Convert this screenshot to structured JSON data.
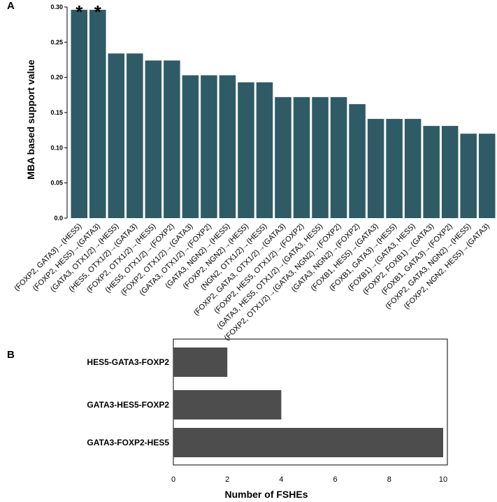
{
  "panels": {
    "a_label": "A",
    "b_label": "B"
  },
  "chart_data": [
    {
      "type": "bar",
      "orientation": "vertical",
      "panel": "A",
      "title": "",
      "xlabel": "",
      "ylabel": "MBA based support value",
      "ylim": [
        0,
        0.3
      ],
      "yticks": [
        "0.0",
        "0.05",
        "0.10",
        "0.15",
        "0.20",
        "0.25",
        "0.30"
      ],
      "bar_color": "#2f5b66",
      "categories": [
        "(FOXP2, GATA3)→(HES5)",
        "(FOXP2, HES5)→(GATA3)",
        "(GATA3, OTX1/2)→(HES5)",
        "(HES5, OTX1/2)→(GATA3)",
        "(FOXP2, OTX1/2)→(HES5)",
        "(HES5, OTX1/2)→(FOXP2)",
        "(FOXP2, OTX1/2)→(GATA3)",
        "(GATA3, OTX1/2)→(FOXP2)",
        "(GATA3, NGN2)→(HES5)",
        "(FOXP2, NGN2)→(HES5)",
        "(NGN2, OTX1/2)→(HES5)",
        "(FOXP2, GATA3, OTX1/2)→(GATA3)",
        "(FOXP2, HES5, OTX1/2)→(FOXP2)",
        "(GATA3, HES5, OTX1/2)→(GATA3, HES5)",
        "(FOXP2, OTX1/2)→(GATA3, NGN2)→(FOXP2)",
        "(GATA3, NGN2)→(FOXP2)",
        "(FOXB1, HES5)→(GATA3)",
        "(FOXB1, GATA3)→(HES5)",
        "(FOXB1)→(GATA3, HES5)",
        "(FOXP2, FOXB1)→(GATA3)",
        "(FOXB1, GATA3)→(FOXP2)",
        "(FOXP2, GATA3, NGN2)→(HES5)",
        "(FOXP2, NGN2, HES5)→(GATA3)"
      ],
      "values": [
        0.296,
        0.296,
        0.234,
        0.234,
        0.224,
        0.224,
        0.203,
        0.203,
        0.203,
        0.193,
        0.193,
        0.172,
        0.172,
        0.172,
        0.172,
        0.162,
        0.141,
        0.141,
        0.141,
        0.131,
        0.131,
        0.12,
        0.12
      ],
      "annotations": [
        "*",
        "*"
      ]
    },
    {
      "type": "bar",
      "orientation": "horizontal",
      "panel": "B",
      "title": "",
      "xlabel": "Number of FSHEs",
      "ylabel": "",
      "xlim": [
        0,
        10
      ],
      "xticks": [
        "0",
        "2",
        "4",
        "6",
        "8",
        "10"
      ],
      "bar_color": "#4d4d4d",
      "categories": [
        "HES5-GATA3-FOXP2",
        "GATA3-HES5-FOXP2",
        "GATA3-FOXP2-HES5"
      ],
      "values": [
        2,
        4,
        10
      ]
    }
  ]
}
